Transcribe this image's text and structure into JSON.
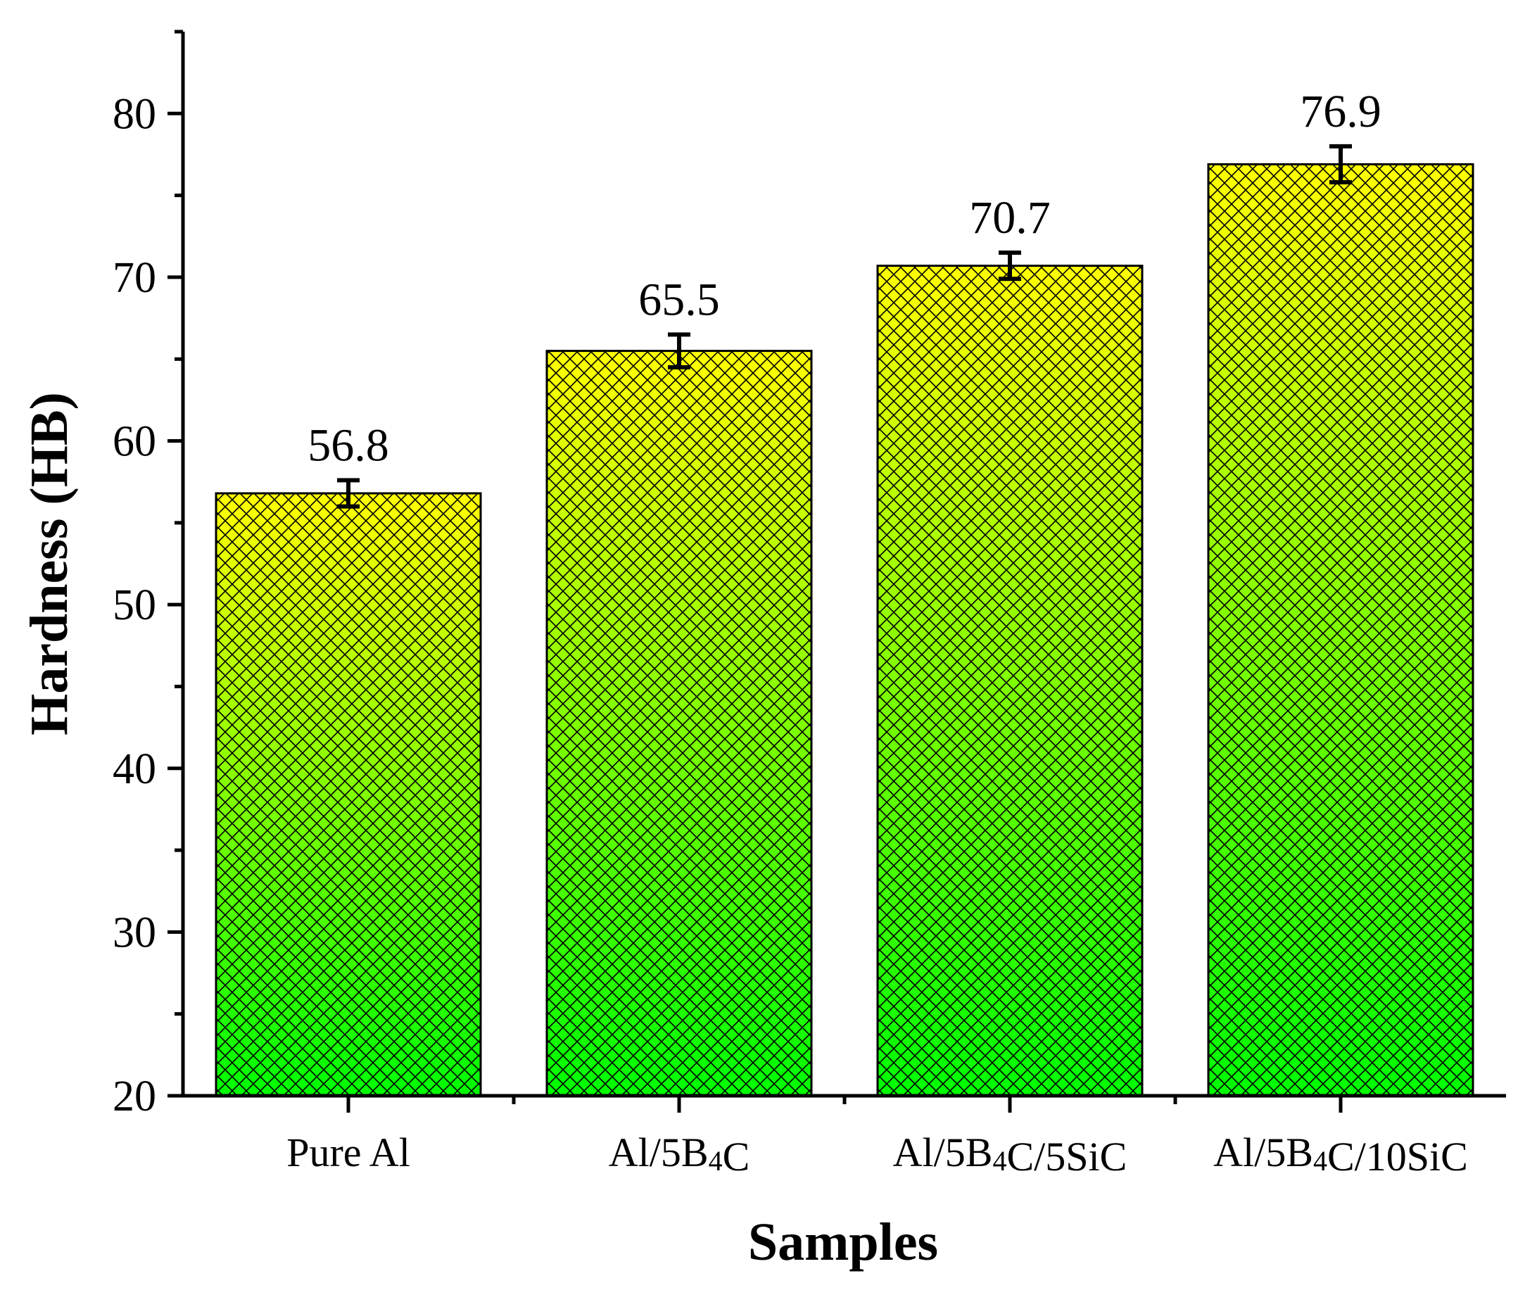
{
  "chart_data": {
    "type": "bar",
    "title": "",
    "xlabel": "Samples",
    "ylabel": "Hardness (HB)",
    "ylim": [
      20,
      85
    ],
    "yticks": [
      20,
      30,
      40,
      50,
      60,
      70,
      80
    ],
    "grid": false,
    "categories": [
      {
        "base": "Pure Al",
        "parts": [
          {
            "t": "Pure Al",
            "sub": false
          }
        ]
      },
      {
        "base": "Al/5B4C",
        "parts": [
          {
            "t": "Al/5B",
            "sub": false
          },
          {
            "t": "4",
            "sub": true
          },
          {
            "t": "C",
            "sub": false
          }
        ]
      },
      {
        "base": "Al/5B4C/5SiC",
        "parts": [
          {
            "t": "Al/5B",
            "sub": false
          },
          {
            "t": "4",
            "sub": true
          },
          {
            "t": "C/5SiC",
            "sub": false
          }
        ]
      },
      {
        "base": "Al/5B4C/10SiC",
        "parts": [
          {
            "t": "Al/5B",
            "sub": false
          },
          {
            "t": "4",
            "sub": true
          },
          {
            "t": "C/10SiC",
            "sub": false
          }
        ]
      }
    ],
    "values": [
      56.8,
      65.5,
      70.7,
      76.9
    ],
    "value_labels": [
      "56.8",
      "65.5",
      "70.7",
      "76.9"
    ],
    "errors": [
      0.8,
      1.0,
      0.8,
      1.1
    ],
    "bar_fill": {
      "top": "#ffff00",
      "bottom": "#00ff00",
      "pattern": "crosshatch",
      "pattern_color": "#000000"
    }
  }
}
